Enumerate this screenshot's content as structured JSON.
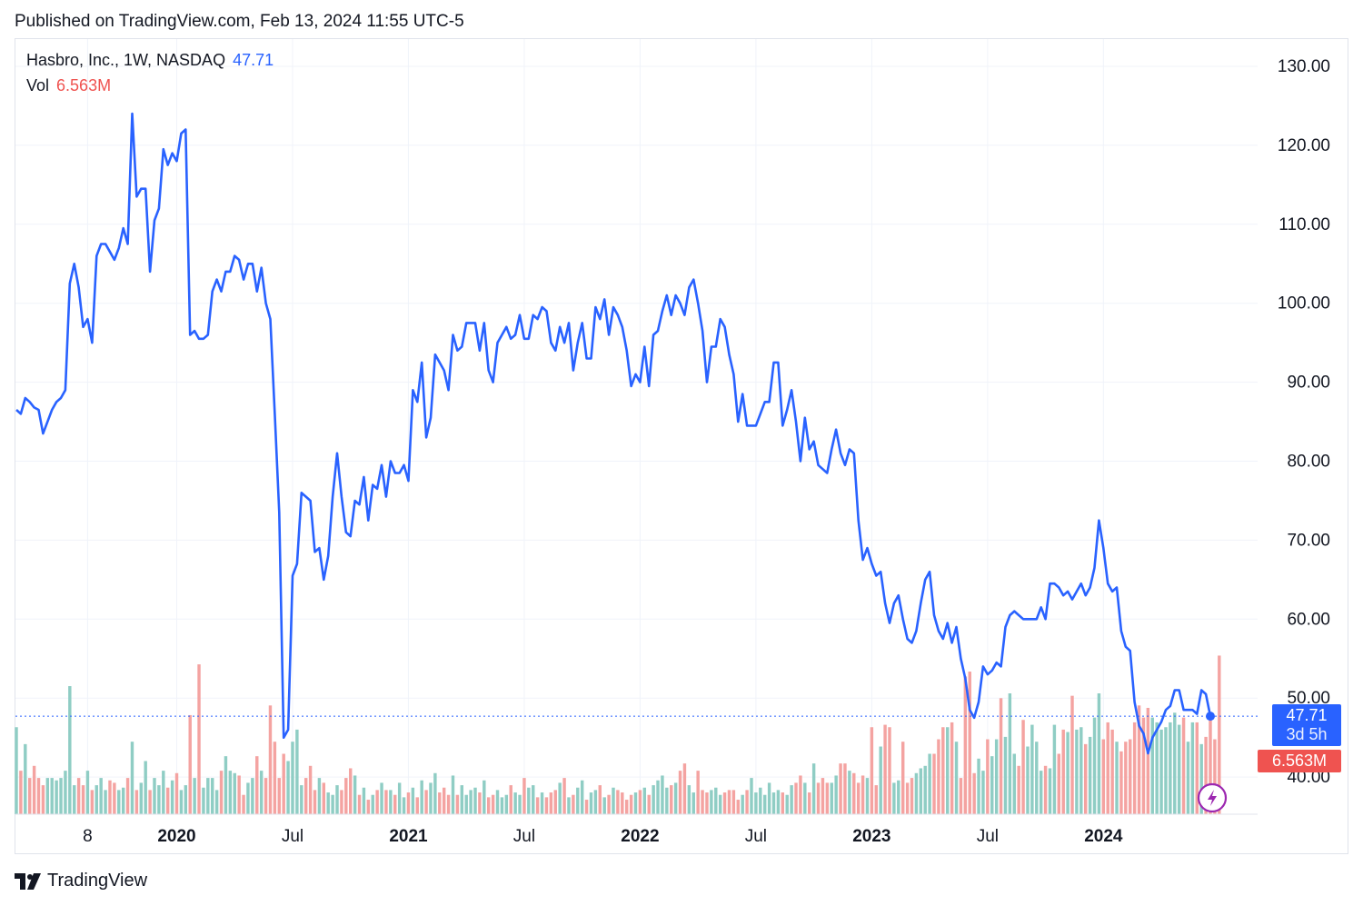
{
  "header": {
    "published": "Published on TradingView.com, Feb 13, 2024 11:55 UTC-5"
  },
  "legend": {
    "symbol": "Hasbro, Inc., 1W, NASDAQ",
    "price": "47.71",
    "vol_label": "Vol",
    "vol_value": "6.563M"
  },
  "tags": {
    "price": "47.71",
    "countdown": "3d 5h",
    "volume": "6.563M"
  },
  "footer": {
    "brand": "TradingView"
  },
  "colors": {
    "line": "#2962ff",
    "vol_up": "#8fcdc4",
    "vol_down": "#f4a3a1",
    "price_tag": "#2962ff",
    "vol_tag": "#ef5350"
  },
  "icons": {
    "lightning": "lightning-icon",
    "logo": "tradingview-logo-icon"
  },
  "chart_data": {
    "type": "line",
    "symbol": "HAS",
    "interval": "1W",
    "ylim": [
      35.0,
      133.0
    ],
    "y_ticks": [
      "130.00",
      "120.00",
      "110.00",
      "100.00",
      "90.00",
      "80.00",
      "70.00",
      "60.00",
      "50.00",
      "40.00"
    ],
    "x_ticks": [
      "8",
      "2020",
      "Jul",
      "2021",
      "Jul",
      "2022",
      "Jul",
      "2023",
      "Jul",
      "2024"
    ],
    "grid": true,
    "last_price": 47.71,
    "series": [
      {
        "values": [
          86.5,
          86.0,
          88.0,
          87.5,
          86.8,
          86.5,
          83.5,
          85.0,
          86.5,
          87.5,
          88.0,
          89.0,
          102.5,
          105.0,
          102.0,
          97.0,
          98.0,
          95.0,
          106.0,
          107.5,
          107.5,
          106.5,
          105.5,
          107.0,
          109.5,
          107.5,
          124.0,
          113.5,
          114.5,
          114.5,
          104.0,
          110.5,
          112.0,
          119.5,
          117.5,
          119.0,
          118.0,
          121.5,
          122.0,
          96.0,
          96.5,
          95.5,
          95.5,
          96.0,
          101.5,
          103.0,
          101.5,
          104.0,
          104.0,
          106.0,
          105.5,
          103.0,
          105.0,
          105.0,
          101.5,
          104.5,
          100.0,
          98.0,
          86.0,
          73.5,
          45.0,
          46.0,
          65.5,
          67.0,
          76.0,
          75.5,
          75.0,
          68.5,
          69.0,
          65.0,
          68.0,
          75.5,
          81.0,
          75.5,
          71.0,
          70.5,
          75.0,
          74.5,
          78.0,
          72.5,
          77.0,
          76.5,
          79.5,
          75.5,
          80.0,
          78.5,
          78.5,
          79.5,
          77.5,
          89.0,
          87.5,
          92.5,
          83.0,
          85.5,
          93.5,
          92.5,
          91.5,
          89.0,
          96.0,
          94.0,
          94.5,
          97.5,
          97.5,
          97.5,
          94.0,
          97.5,
          91.5,
          90.0,
          95.0,
          96.0,
          97.0,
          95.5,
          96.0,
          98.5,
          95.5,
          95.5,
          98.5,
          98.0,
          99.5,
          99.0,
          95.0,
          94.0,
          97.0,
          95.0,
          97.5,
          91.5,
          95.0,
          97.5,
          93.0,
          93.0,
          99.5,
          98.0,
          100.5,
          96.0,
          99.5,
          98.5,
          97.0,
          94.0,
          89.5,
          91.0,
          90.0,
          94.5,
          89.5,
          96.0,
          96.5,
          99.0,
          101.0,
          98.5,
          101.0,
          100.0,
          98.5,
          102.0,
          103.0,
          100.0,
          96.5,
          90.0,
          94.5,
          94.5,
          98.0,
          97.0,
          93.5,
          91.0,
          85.0,
          88.5,
          84.5,
          84.5,
          84.5,
          86.0,
          87.5,
          87.5,
          92.5,
          92.5,
          84.5,
          86.5,
          89.0,
          85.0,
          80.0,
          85.5,
          81.5,
          82.5,
          79.5,
          79.0,
          78.5,
          81.5,
          84.0,
          81.0,
          79.5,
          81.5,
          81.0,
          72.5,
          67.5,
          69.0,
          67.0,
          65.5,
          66.0,
          62.0,
          59.5,
          62.0,
          63.0,
          60.0,
          57.5,
          57.0,
          58.5,
          62.0,
          65.0,
          66.0,
          60.5,
          58.5,
          57.5,
          59.5,
          57.0,
          59.0,
          55.0,
          52.5,
          48.5,
          47.5,
          49.5,
          54.0,
          53.0,
          53.5,
          54.5,
          54.0,
          59.0,
          60.5,
          61.0,
          60.5,
          60.0,
          60.0,
          60.0,
          60.0,
          61.5,
          60.0,
          64.5,
          64.5,
          64.0,
          63.0,
          63.5,
          62.5,
          63.5,
          64.5,
          63.0,
          64.0,
          66.5,
          72.5,
          69.0,
          64.5,
          63.5,
          64.0,
          58.5,
          56.5,
          56.0,
          49.5,
          46.5,
          45.5,
          43.0,
          45.0,
          46.0,
          47.0,
          48.5,
          49.0,
          51.0,
          51.0,
          48.5,
          48.5,
          48.5,
          48.0,
          51.0,
          50.5,
          47.71
        ]
      }
    ],
    "volume": {
      "label": "Vol",
      "unit": "M",
      "values": [
        3.6,
        1.8,
        2.9,
        1.5,
        2.0,
        1.5,
        1.2,
        1.5,
        1.5,
        1.4,
        1.5,
        1.8,
        5.3,
        1.2,
        1.5,
        1.2,
        1.8,
        1.0,
        1.2,
        1.5,
        1.0,
        1.4,
        1.3,
        1.0,
        1.1,
        1.5,
        3.0,
        1.0,
        1.3,
        2.2,
        1.0,
        1.5,
        1.2,
        1.8,
        1.1,
        1.4,
        1.7,
        1.0,
        1.2,
        4.1,
        1.5,
        6.2,
        1.1,
        1.5,
        1.5,
        1.0,
        1.8,
        2.4,
        1.8,
        1.7,
        1.6,
        0.8,
        1.3,
        1.5,
        2.4,
        1.8,
        1.5,
        4.5,
        3.0,
        1.5,
        2.5,
        2.2,
        3.0,
        3.5,
        1.2,
        1.5,
        2.0,
        1.0,
        1.5,
        1.3,
        0.9,
        0.8,
        1.2,
        1.0,
        1.5,
        1.9,
        1.6,
        0.8,
        1.1,
        0.6,
        0.8,
        1.0,
        1.3,
        1.0,
        1.0,
        0.8,
        1.3,
        0.7,
        0.9,
        1.1,
        0.7,
        1.4,
        1.0,
        1.3,
        1.7,
        0.9,
        1.1,
        0.8,
        1.6,
        0.8,
        1.2,
        0.8,
        1.0,
        1.1,
        0.9,
        1.4,
        0.7,
        0.8,
        1.0,
        0.7,
        0.8,
        1.2,
        0.9,
        0.8,
        1.5,
        1.1,
        1.2,
        0.7,
        0.9,
        0.7,
        0.9,
        1.0,
        1.3,
        1.5,
        0.7,
        0.8,
        1.1,
        1.4,
        0.6,
        0.9,
        1.0,
        1.2,
        0.7,
        0.8,
        1.1,
        1.0,
        0.9,
        0.6,
        0.8,
        0.9,
        1.0,
        1.1,
        0.8,
        1.2,
        1.4,
        1.6,
        1.1,
        1.2,
        1.3,
        1.8,
        2.1,
        1.2,
        0.9,
        1.8,
        1.0,
        0.9,
        1.0,
        1.1,
        0.8,
        0.9,
        1.0,
        1.0,
        0.6,
        0.8,
        1.0,
        1.5,
        0.9,
        1.1,
        0.8,
        1.3,
        0.9,
        1.0,
        0.9,
        0.8,
        1.2,
        1.3,
        1.6,
        1.3,
        0.9,
        2.1,
        1.3,
        1.5,
        1.3,
        1.3,
        1.6,
        2.1,
        2.1,
        1.8,
        1.7,
        1.3,
        1.6,
        1.5,
        3.6,
        1.2,
        2.8,
        3.7,
        3.6,
        1.3,
        1.4,
        3.0,
        1.3,
        1.5,
        1.7,
        1.9,
        2.0,
        2.5,
        2.5,
        3.1,
        3.6,
        3.6,
        3.8,
        3.0,
        1.5,
        5.7,
        5.9,
        1.7,
        2.3,
        1.8,
        3.1,
        2.4,
        3.1,
        4.8,
        3.2,
        5.0,
        2.5,
        2.0,
        3.9,
        2.8,
        3.7,
        3.0,
        1.8,
        2.0,
        1.9,
        3.7,
        2.5,
        3.5,
        3.4,
        4.9,
        3.5,
        3.6,
        2.9,
        3.2,
        4.0,
        5.0,
        3.1,
        3.8,
        3.5,
        3.0,
        2.6,
        3.0,
        3.1,
        3.8,
        4.5,
        4.0,
        4.4,
        4.0,
        3.8,
        3.5,
        3.6,
        3.8,
        4.2,
        3.7,
        4.0,
        3.0,
        3.8,
        3.8,
        2.9,
        3.2,
        4.0,
        3.1,
        6.563
      ]
    }
  }
}
